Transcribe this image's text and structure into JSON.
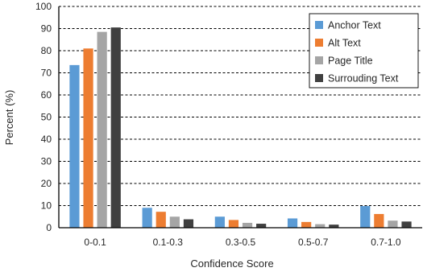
{
  "chart_data": {
    "type": "bar",
    "title": "",
    "xlabel": "Confidence Score",
    "ylabel": "Percent (%)",
    "ylim": [
      0,
      100
    ],
    "yticks": [
      0,
      10,
      20,
      30,
      40,
      50,
      60,
      70,
      80,
      90,
      100
    ],
    "grid": "horizontal dashed",
    "legend_position": "top-right",
    "categories": [
      "0-0.1",
      "0.1-0.3",
      "0.3-0.5",
      "0.5-0.7",
      "0.7-1.0"
    ],
    "series": [
      {
        "name": "Anchor Text",
        "color": "#5B9BD5",
        "values": [
          73.5,
          9.0,
          5.0,
          4.2,
          9.8
        ]
      },
      {
        "name": "Alt Text",
        "color": "#ED7D31",
        "values": [
          81.0,
          7.2,
          3.5,
          2.6,
          6.2
        ]
      },
      {
        "name": "Page Title",
        "color": "#A5A5A5",
        "values": [
          88.5,
          5.0,
          2.2,
          1.6,
          3.2
        ]
      },
      {
        "name": "Surrouding Text",
        "color": "#404040",
        "values": [
          90.5,
          3.8,
          1.8,
          1.4,
          2.8
        ]
      }
    ]
  }
}
